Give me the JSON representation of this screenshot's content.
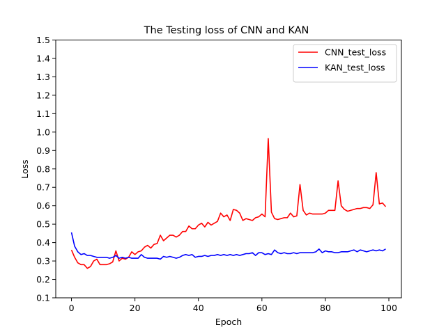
{
  "chart_data": {
    "type": "line",
    "title": "The Testing loss of CNN and KAN",
    "xlabel": "Epoch",
    "ylabel": "Loss",
    "xlim": [
      -4.95,
      103.95
    ],
    "ylim": [
      0.1,
      1.5
    ],
    "x_ticks": [
      0,
      20,
      40,
      60,
      80,
      100
    ],
    "x_tick_labels": [
      "0",
      "20",
      "40",
      "60",
      "80",
      "100"
    ],
    "y_ticks": [
      0.1,
      0.2,
      0.3,
      0.4,
      0.5,
      0.6,
      0.7,
      0.8,
      0.9,
      1.0,
      1.1,
      1.2,
      1.3,
      1.4,
      1.5
    ],
    "y_tick_labels": [
      "0.1",
      "0.2",
      "0.3",
      "0.4",
      "0.5",
      "0.6",
      "0.7",
      "0.8",
      "0.9",
      "1.0",
      "1.1",
      "1.2",
      "1.3",
      "1.4",
      "1.5"
    ],
    "grid": false,
    "legend_position": "top-right",
    "x": [
      0,
      1,
      2,
      3,
      4,
      5,
      6,
      7,
      8,
      9,
      10,
      11,
      12,
      13,
      14,
      15,
      16,
      17,
      18,
      19,
      20,
      21,
      22,
      23,
      24,
      25,
      26,
      27,
      28,
      29,
      30,
      31,
      32,
      33,
      34,
      35,
      36,
      37,
      38,
      39,
      40,
      41,
      42,
      43,
      44,
      45,
      46,
      47,
      48,
      49,
      50,
      51,
      52,
      53,
      54,
      55,
      56,
      57,
      58,
      59,
      60,
      61,
      62,
      63,
      64,
      65,
      66,
      67,
      68,
      69,
      70,
      71,
      72,
      73,
      74,
      75,
      76,
      77,
      78,
      79,
      80,
      81,
      82,
      83,
      84,
      85,
      86,
      87,
      88,
      89,
      90,
      91,
      92,
      93,
      94,
      95,
      96,
      97,
      98,
      99
    ],
    "series": [
      {
        "name": "CNN_test_loss",
        "color": "#ff0000",
        "values": [
          0.36,
          0.32,
          0.29,
          0.28,
          0.28,
          0.26,
          0.27,
          0.3,
          0.31,
          0.28,
          0.28,
          0.28,
          0.285,
          0.295,
          0.355,
          0.3,
          0.315,
          0.31,
          0.32,
          0.35,
          0.335,
          0.35,
          0.355,
          0.375,
          0.385,
          0.37,
          0.39,
          0.395,
          0.44,
          0.41,
          0.425,
          0.44,
          0.44,
          0.43,
          0.44,
          0.46,
          0.46,
          0.49,
          0.475,
          0.475,
          0.495,
          0.505,
          0.485,
          0.51,
          0.495,
          0.505,
          0.515,
          0.56,
          0.54,
          0.55,
          0.52,
          0.58,
          0.575,
          0.56,
          0.52,
          0.53,
          0.525,
          0.52,
          0.535,
          0.54,
          0.555,
          0.54,
          0.965,
          0.565,
          0.53,
          0.525,
          0.53,
          0.535,
          0.535,
          0.56,
          0.54,
          0.545,
          0.715,
          0.575,
          0.55,
          0.56,
          0.555,
          0.555,
          0.555,
          0.555,
          0.56,
          0.575,
          0.575,
          0.575,
          0.735,
          0.6,
          0.58,
          0.57,
          0.575,
          0.58,
          0.585,
          0.585,
          0.59,
          0.59,
          0.585,
          0.605,
          0.78,
          0.61,
          0.615,
          0.595
        ]
      },
      {
        "name": "KAN_test_loss",
        "color": "#0000ff",
        "values": [
          0.455,
          0.38,
          0.35,
          0.335,
          0.34,
          0.33,
          0.33,
          0.325,
          0.32,
          0.32,
          0.32,
          0.32,
          0.315,
          0.32,
          0.33,
          0.315,
          0.32,
          0.315,
          0.32,
          0.315,
          0.315,
          0.315,
          0.335,
          0.32,
          0.315,
          0.315,
          0.315,
          0.315,
          0.31,
          0.325,
          0.32,
          0.325,
          0.32,
          0.315,
          0.32,
          0.33,
          0.335,
          0.33,
          0.335,
          0.32,
          0.325,
          0.325,
          0.33,
          0.325,
          0.33,
          0.33,
          0.335,
          0.33,
          0.335,
          0.33,
          0.335,
          0.33,
          0.335,
          0.33,
          0.335,
          0.34,
          0.34,
          0.345,
          0.33,
          0.345,
          0.345,
          0.335,
          0.34,
          0.335,
          0.36,
          0.345,
          0.34,
          0.345,
          0.34,
          0.34,
          0.345,
          0.34,
          0.345,
          0.345,
          0.345,
          0.345,
          0.345,
          0.35,
          0.365,
          0.345,
          0.355,
          0.35,
          0.35,
          0.345,
          0.345,
          0.35,
          0.35,
          0.35,
          0.355,
          0.36,
          0.35,
          0.36,
          0.355,
          0.35,
          0.355,
          0.36,
          0.355,
          0.36,
          0.355,
          0.365
        ]
      }
    ]
  }
}
